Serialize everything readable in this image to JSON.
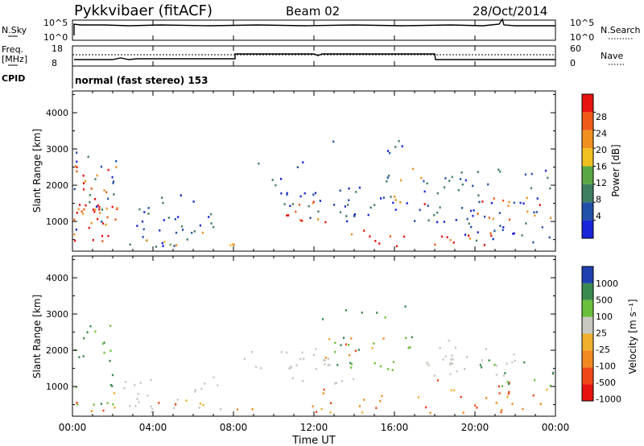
{
  "header": {
    "radar_title": "Pykkvibaer (fitACF)",
    "beam": "Beam 02",
    "date": "28/Oct/2014"
  },
  "top_panels": {
    "nsky_label": "N.Sky",
    "nsky_ticks": [
      "10^5",
      "10^0"
    ],
    "nsearch_label": "N.Search",
    "nsearch_ticks": [
      "10^5",
      "10^0"
    ],
    "freq_label_1": "Freq.",
    "freq_label_2": "[MHz]",
    "freq_ticks": [
      "18",
      "8"
    ],
    "nave_label": "Nave",
    "nave_ticks": [
      "60",
      "0"
    ],
    "cpid_label": "CPID",
    "cpid_text": "normal (fast stereo) 153"
  },
  "x_axis": {
    "ticks": [
      "00:00",
      "04:00",
      "08:00",
      "12:00",
      "16:00",
      "20:00",
      "00:00"
    ],
    "label": "Time UT"
  },
  "colors": {
    "power_scale": [
      "#1a24d8",
      "#2050a8",
      "#3d7f60",
      "#5aa845",
      "#f0c020",
      "#f09020",
      "#f05a18",
      "#e81410"
    ],
    "velocity_scale": [
      "#e81410",
      "#f04818",
      "#f08a20",
      "#f0b030",
      "#c8c8c0",
      "#6ac03c",
      "#3a8a50",
      "#2040b0"
    ],
    "ground_scatter": "#c8c8c0"
  },
  "chart_data": [
    {
      "type": "heatmap",
      "panel": "power",
      "ylabel": "Slant Range [km]",
      "ylim": [
        180,
        4600
      ],
      "y_ticks": [
        "4000",
        "3000",
        "2000",
        "1000"
      ],
      "xlim_hours": [
        0,
        24
      ],
      "colorbar_label": "Power [dB]",
      "colorbar_ticks": [
        "28",
        "24",
        "20",
        "16",
        "12",
        "8",
        "4"
      ],
      "colorbar_range": [
        0,
        32
      ]
    },
    {
      "type": "heatmap",
      "panel": "velocity",
      "ylabel": "Slant Range [km]",
      "ylim": [
        180,
        4600
      ],
      "y_ticks": [
        "4000",
        "3000",
        "2000",
        "1000"
      ],
      "xlim_hours": [
        0,
        24
      ],
      "colorbar_label": "Velocity [m s⁻¹]",
      "colorbar_ticks": [
        "1000",
        "500",
        "100",
        "25",
        "-25",
        "-100",
        "-500",
        "-1000"
      ]
    }
  ]
}
